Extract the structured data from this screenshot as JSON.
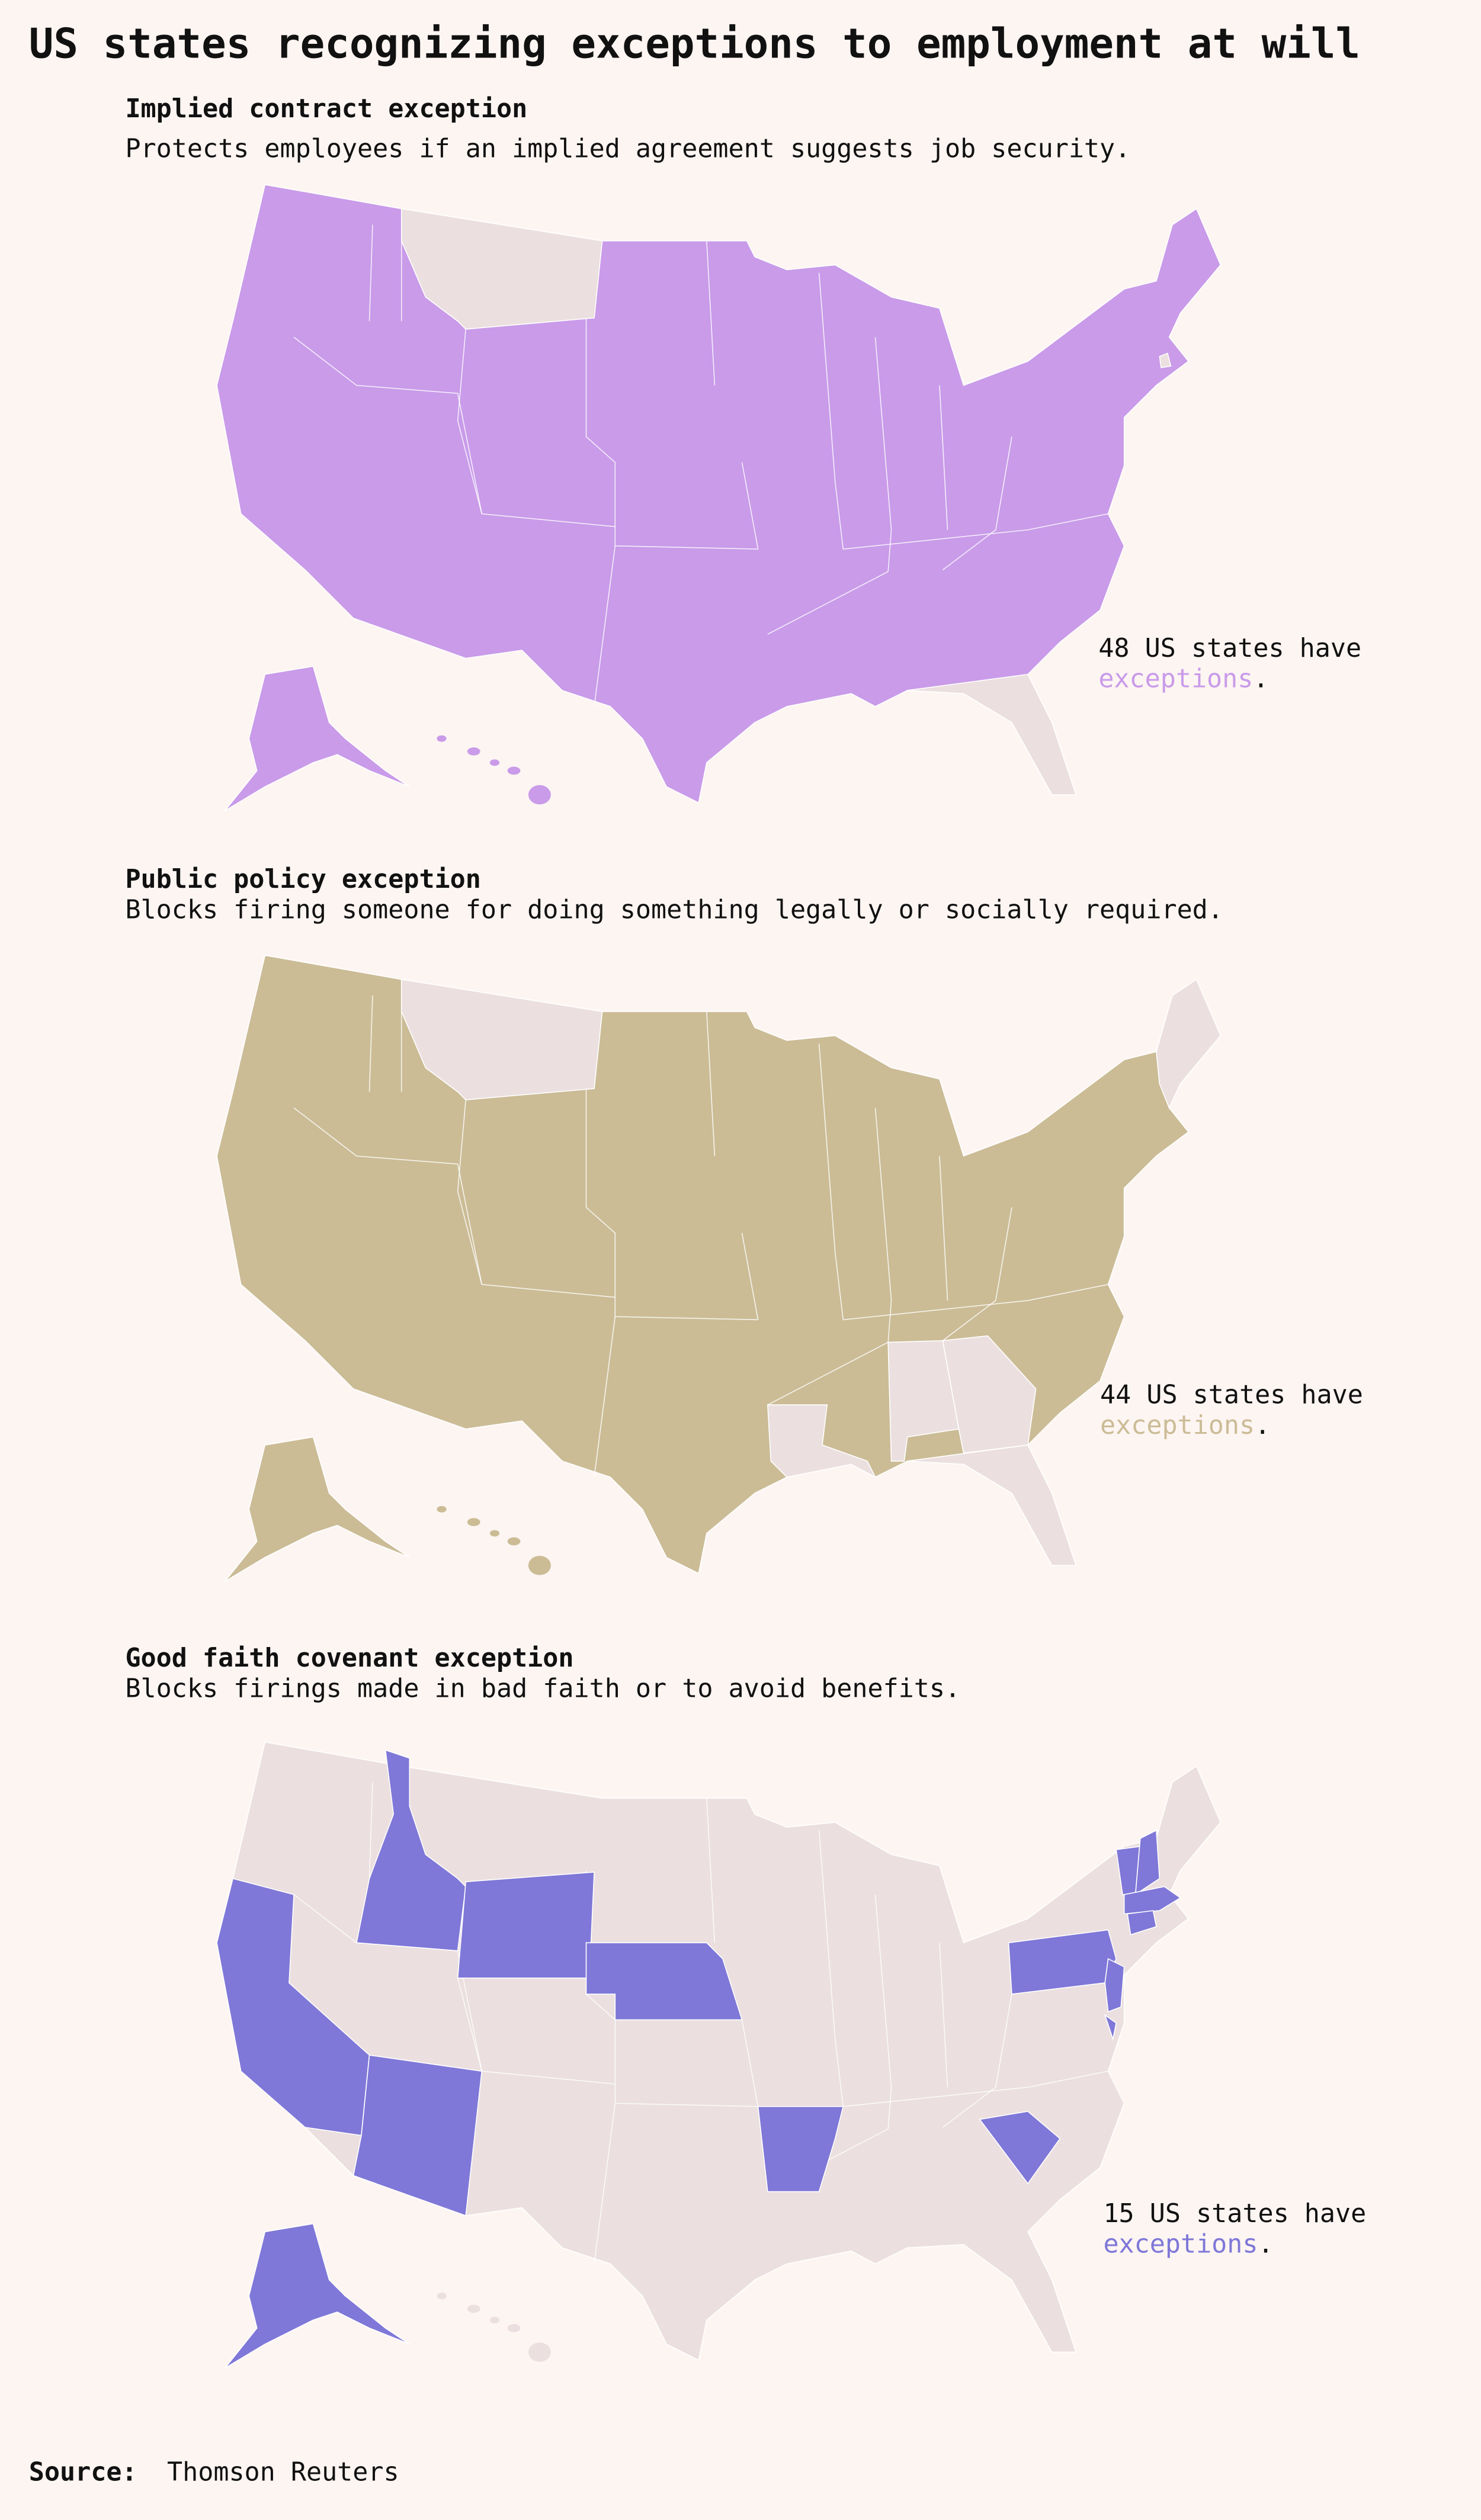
{
  "title": "US states recognizing exceptions to employment at will",
  "sections": [
    {
      "heading": "Implied contract exception",
      "description": "Protects employees if an implied agreement suggests job security.",
      "count_text": "48 US states have",
      "highlight": "exceptions",
      "period": ".",
      "color": "#c99be9"
    },
    {
      "heading": "Public policy exception",
      "description": "Blocks firing someone for doing something legally or socially required.",
      "count_text": "44 US states have",
      "highlight": "exceptions",
      "period": ".",
      "color": "#cbbc96"
    },
    {
      "heading": "Good faith covenant exception",
      "description": "Blocks firings made in bad faith or to avoid benefits.",
      "count_text": "15 US states have",
      "highlight": "exceptions",
      "period": ".",
      "color": "#7f78d8"
    }
  ],
  "source": {
    "label": "Source:",
    "text": "Thomson Reuters"
  }
}
